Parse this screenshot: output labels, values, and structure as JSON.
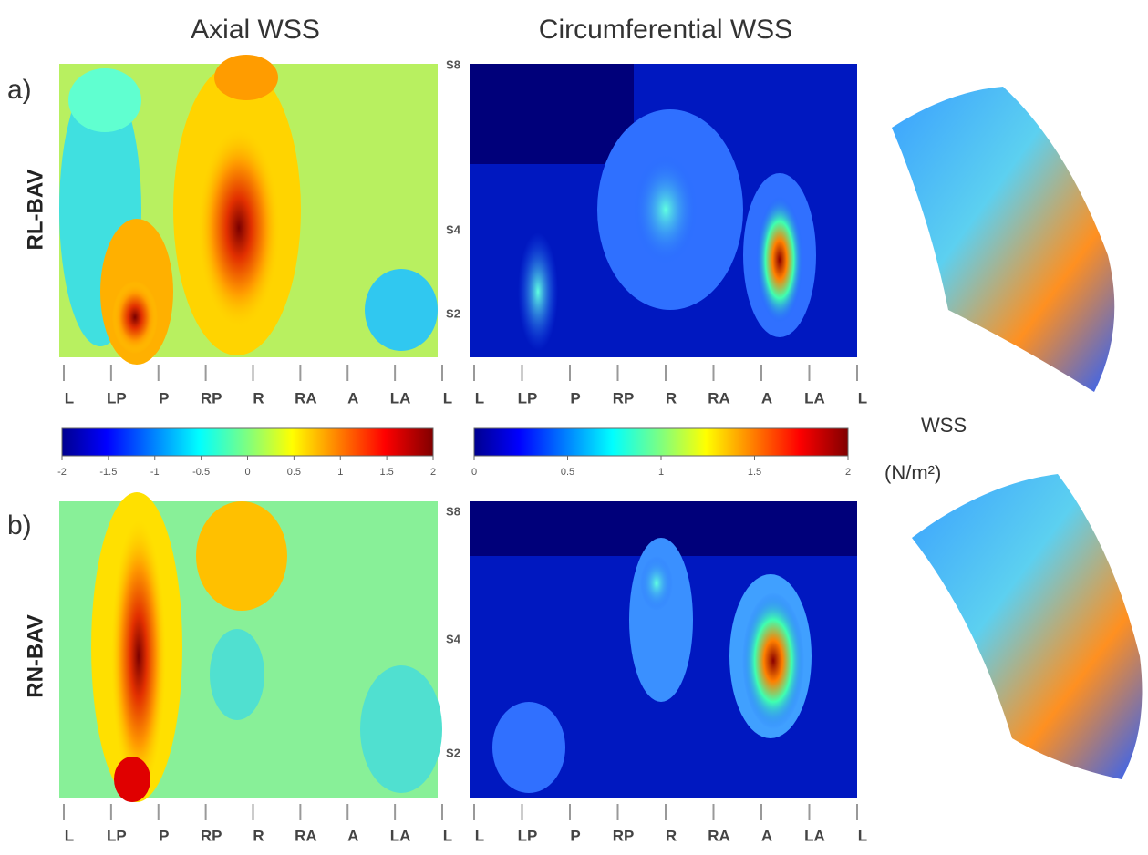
{
  "columns": [
    "Axial WSS",
    "Circumferential WSS"
  ],
  "panels": [
    {
      "label": "a)",
      "name": "RL-BAV",
      "y_labels": [
        "S8",
        "S4",
        "S2"
      ]
    },
    {
      "label": "b)",
      "name": "RN-BAV",
      "y_labels": [
        "S8",
        "S4",
        "S2"
      ]
    }
  ],
  "x_labels": [
    "L",
    "LP",
    "P",
    "RP",
    "R",
    "RA",
    "A",
    "LA",
    "L"
  ],
  "colorbars": [
    {
      "lim": [
        -2,
        2
      ],
      "ticks": [
        -2,
        -1.5,
        -1,
        -0.5,
        0,
        0.5,
        1,
        1.5,
        2
      ]
    },
    {
      "lim": [
        0,
        2
      ],
      "ticks": [
        0,
        0.5,
        1,
        1.5,
        2
      ]
    }
  ],
  "colorbar_title": "WSS",
  "colorbar_unit": "(N/m²)"
}
